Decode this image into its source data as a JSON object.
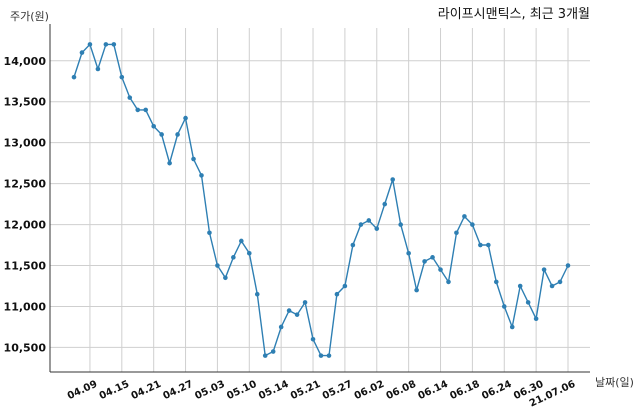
{
  "chart_data": {
    "type": "line",
    "title": "라이프시맨틱스, 최근 3개월",
    "ylabel": "주가(원)",
    "xlabel": "날짜(일)",
    "ylim": [
      10200,
      14400
    ],
    "yticks": [
      10500,
      11000,
      11500,
      12000,
      12500,
      13000,
      13500,
      14000
    ],
    "ytick_labels": [
      "10,500",
      "11,000",
      "11,500",
      "12,000",
      "12,500",
      "13,000",
      "13,500",
      "14,000"
    ],
    "xtick_labels": [
      "04.09",
      "04.15",
      "04.21",
      "04.27",
      "05.03",
      "05.10",
      "05.14",
      "05.21",
      "05.27",
      "06.02",
      "06.08",
      "06.14",
      "06.18",
      "06.24",
      "06.30",
      "21.07.06"
    ],
    "xtick_index": [
      2,
      6,
      10,
      14,
      18,
      22,
      26,
      30,
      34,
      38,
      42,
      46,
      50,
      54,
      58,
      62
    ],
    "grid": true,
    "line_color": "#2e7fb3",
    "series": [
      {
        "values": [
          13800,
          14100,
          14200,
          13900,
          14200,
          14200,
          13800,
          13550,
          13400,
          13400,
          13200,
          13100,
          12750,
          13100,
          13300,
          12800,
          12600,
          11900,
          11500,
          11350,
          11600,
          11800,
          11650,
          11150,
          10400,
          10450,
          10750,
          10950,
          10900,
          11050,
          10600,
          10400,
          10400,
          11150,
          11250,
          11750,
          12000,
          12050,
          11950,
          12250,
          12550,
          12000,
          11650,
          11200,
          11550,
          11600,
          11450,
          11300,
          11900,
          12100,
          12000,
          11750,
          11750,
          11300,
          11000,
          10750,
          11250,
          11050,
          10850,
          11450,
          11250,
          11300,
          11500
        ]
      }
    ]
  }
}
